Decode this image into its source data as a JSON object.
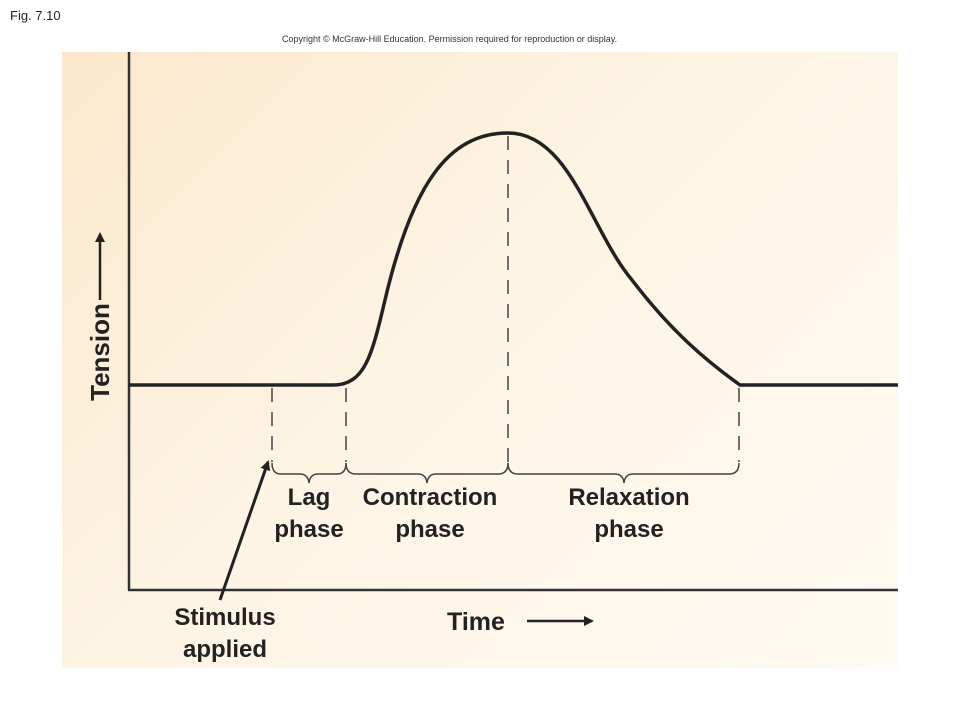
{
  "figure_label": "Fig. 7.10",
  "copyright": "Copyright © McGraw-Hill Education. Permission required for reproduction or display.",
  "axes": {
    "y_label": "Tension",
    "x_label": "Time"
  },
  "phases": [
    {
      "line1": "Lag",
      "line2": "phase"
    },
    {
      "line1": "Contraction",
      "line2": "phase"
    },
    {
      "line1": "Relaxation",
      "line2": "phase"
    }
  ],
  "stimulus": {
    "line1": "Stimulus",
    "line2": "applied"
  }
}
